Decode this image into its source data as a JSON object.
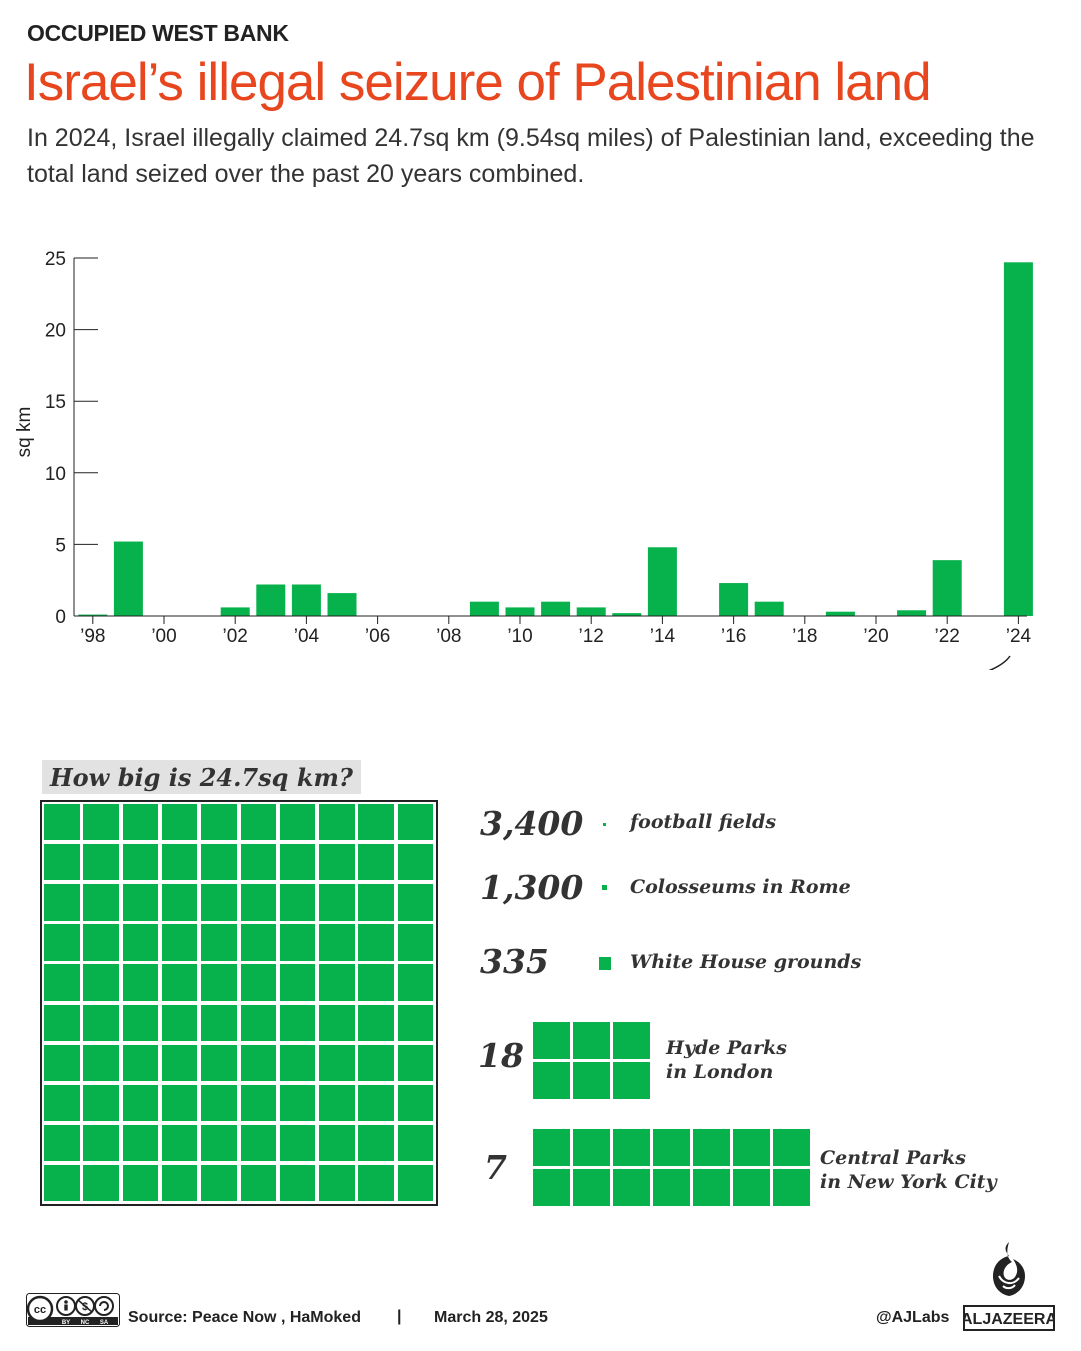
{
  "header": {
    "kicker": "OCCUPIED WEST BANK",
    "headline": "Israel’s illegal seizure of Palestinian land",
    "subtitle": "In 2024, Israel illegally claimed 24.7sq km (9.54sq miles) of Palestinian land, exceeding the total land seized over the past 20 years combined."
  },
  "colors": {
    "bar": "#07b14b",
    "headline": "#e8461f",
    "text": "#222222"
  },
  "chart_data": {
    "type": "bar",
    "title": "",
    "xlabel": "",
    "ylabel": "sq km",
    "ylim": [
      0,
      25
    ],
    "yticks": [
      0,
      5,
      10,
      15,
      20,
      25
    ],
    "categories": [
      "1998",
      "1999",
      "2000",
      "2001",
      "2002",
      "2003",
      "2004",
      "2005",
      "2006",
      "2007",
      "2008",
      "2009",
      "2010",
      "2011",
      "2012",
      "2013",
      "2014",
      "2015",
      "2016",
      "2017",
      "2018",
      "2019",
      "2020",
      "2021",
      "2022",
      "2023",
      "2024"
    ],
    "values": [
      0.1,
      5.2,
      0,
      0,
      0.6,
      2.2,
      2.2,
      1.6,
      0,
      0,
      0,
      1.0,
      0.6,
      1.0,
      0.6,
      0.2,
      4.8,
      0,
      2.3,
      1.0,
      0,
      0.3,
      0,
      0.4,
      3.9,
      0,
      24.7
    ],
    "x_tick_labels": [
      "’98",
      "’00",
      "’02",
      "’04",
      "’06",
      "’08",
      "’10",
      "’12",
      "’14",
      "’16",
      "’18",
      "’20",
      "’22",
      "’24"
    ],
    "grid": false
  },
  "comparison": {
    "question": "How big is 24.7sq km?",
    "grid_squares": 100,
    "items": [
      {
        "number": "3,400",
        "label": "football fields"
      },
      {
        "number": "1,300",
        "label": "Colosseums in Rome"
      },
      {
        "number": "335",
        "label": "White House grounds"
      },
      {
        "number": "18",
        "label_line1": "Hyde Parks",
        "label_line2": "in London"
      },
      {
        "number": "7",
        "label_line1": "Central Parks",
        "label_line2": "in New York City"
      }
    ]
  },
  "footer": {
    "source": "Source:  Peace Now , HaMoked",
    "separator": "|",
    "date": "March 28, 2025",
    "handle": "@AJLabs",
    "brand": "ALJAZEERA",
    "license_badge": "cc-by-nc-sa"
  }
}
